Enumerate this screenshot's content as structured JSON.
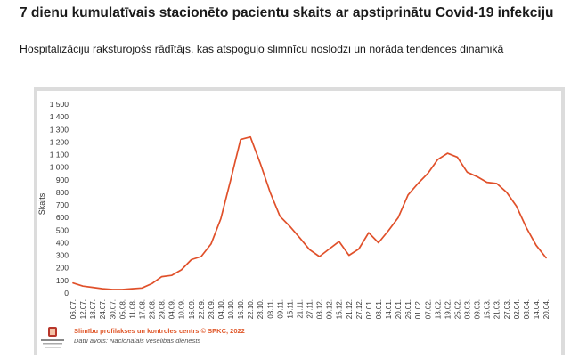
{
  "title": "7 dienu kumulatīvais stacionēto pacientu skaits ar apstiprinātu Covid-19 infekciju",
  "subtitle": "Hospitalizāciju raksturojošs rādītājs, kas atspoguļo slimnīcu noslodzi un norāda tendences dinamikā",
  "footer": {
    "credit": "Slimību profilakses un kontroles centrs © SPKC, 2022",
    "source": "Datu avots: Nacionālais veselības dienests",
    "logo_text": "Slimību profilakses un kontroles centrs"
  },
  "colors": {
    "line": "#e0502a",
    "credit": "#e0582a",
    "frame": "#dcdcdc"
  },
  "chart_data": {
    "type": "line",
    "title": "",
    "xlabel": "",
    "ylabel": "Skaits",
    "ylim": [
      0,
      1500
    ],
    "y_ticks": [
      0,
      100,
      200,
      300,
      400,
      500,
      600,
      700,
      800,
      900,
      1000,
      1100,
      1200,
      1300,
      1400,
      1500
    ],
    "y_tick_labels": [
      "0",
      "100",
      "200",
      "300",
      "400",
      "500",
      "600",
      "700",
      "800",
      "900",
      "1 000",
      "1 100",
      "1 200",
      "1 300",
      "1 400",
      "1 500"
    ],
    "grid": false,
    "legend": "none",
    "x_tick_labels": [
      "06.07.",
      "12.07.",
      "18.07.",
      "24.07.",
      "30.07.",
      "05.08.",
      "11.08.",
      "17.08.",
      "23.08.",
      "29.08.",
      "04.09.",
      "10.09.",
      "16.09.",
      "22.09.",
      "28.09.",
      "04.10.",
      "10.10.",
      "16.10.",
      "22.10.",
      "28.10.",
      "03.11.",
      "09.11.",
      "15.11.",
      "21.11.",
      "27.11.",
      "03.12.",
      "09.12.",
      "15.12.",
      "21.12.",
      "27.12.",
      "02.01.",
      "08.01.",
      "14.01.",
      "20.01.",
      "26.01.",
      "01.02.",
      "07.02.",
      "13.02.",
      "19.02.",
      "25.02.",
      "03.03.",
      "09.03.",
      "15.03.",
      "21.03.",
      "27.03.",
      "02.04.",
      "08.04.",
      "14.04.",
      "20.04."
    ],
    "series": [
      {
        "x": [
          "06.07.",
          "12.07.",
          "18.07.",
          "24.07.",
          "30.07.",
          "05.08.",
          "11.08.",
          "17.08.",
          "23.08.",
          "29.08.",
          "04.09.",
          "10.09.",
          "16.09.",
          "22.09.",
          "28.09.",
          "04.10.",
          "10.10.",
          "16.10.",
          "22.10.",
          "28.10.",
          "03.11.",
          "09.11.",
          "15.11.",
          "21.11.",
          "27.11.",
          "03.12.",
          "09.12.",
          "15.12.",
          "21.12.",
          "27.12.",
          "02.01.",
          "08.01.",
          "14.01.",
          "20.01.",
          "26.01.",
          "01.02.",
          "07.02.",
          "13.02.",
          "19.02.",
          "25.02.",
          "03.03.",
          "09.03.",
          "15.03.",
          "21.03.",
          "27.03.",
          "02.04.",
          "08.04.",
          "14.04.",
          "20.04."
        ],
        "values": [
          80,
          55,
          45,
          35,
          28,
          28,
          35,
          40,
          75,
          130,
          140,
          185,
          265,
          290,
          390,
          590,
          900,
          1220,
          1240,
          1030,
          800,
          610,
          530,
          440,
          345,
          290,
          350,
          410,
          300,
          350,
          480,
          400,
          495,
          600,
          780,
          870,
          950,
          1060,
          1110,
          1080,
          960,
          925,
          880,
          870,
          800,
          690,
          520,
          380,
          280
        ]
      }
    ]
  }
}
